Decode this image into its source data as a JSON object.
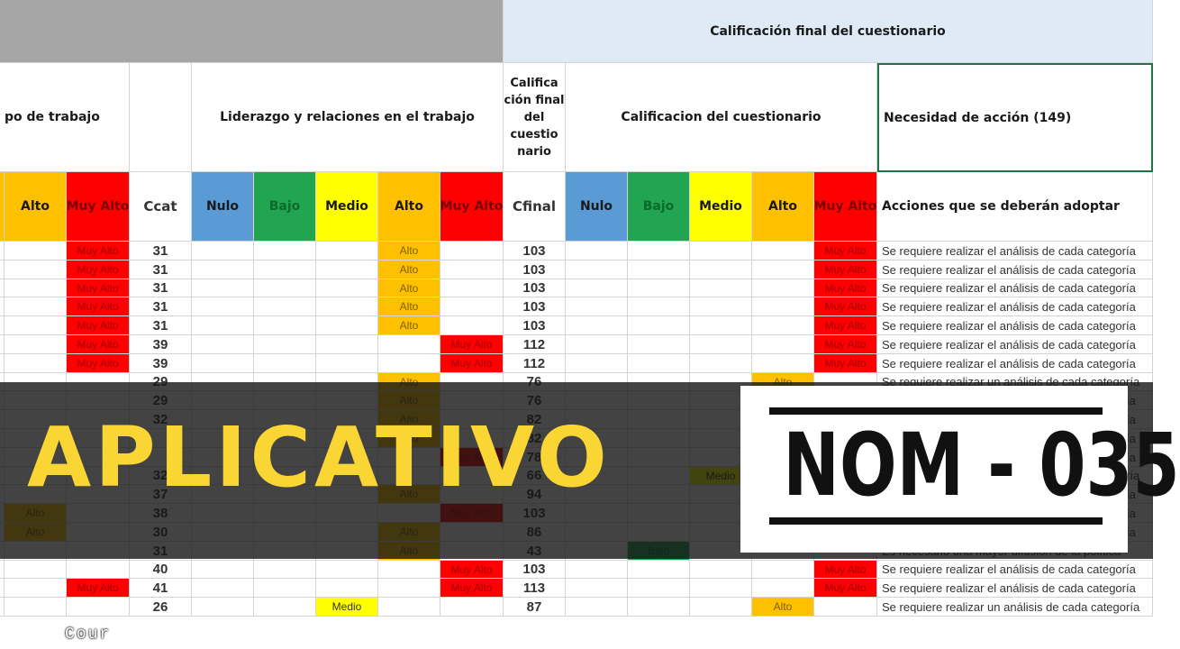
{
  "header": {
    "final_grade_title": "Calificación final del cuestionario",
    "section_team": "po de trabajo",
    "section_leadership": "Liderazgo y relaciones en el trabajo",
    "final_grade_stack": "Califica ción final del cuestio nario",
    "questionnaire_grade": "Calificacion del cuestionario",
    "action_need": "Necesidad de acción (149)"
  },
  "columns": {
    "ccat": "Ccat",
    "cfinal": "Cfinal",
    "levels": [
      "Nulo",
      "Bajo",
      "Medio",
      "Alto",
      "Muy Alto"
    ],
    "actions": "Acciones que se deberán adoptar"
  },
  "colors": {
    "Nulo": "#5b9bd5",
    "Bajo": "#21a551",
    "Medio": "#ffff00",
    "Alto": "#ffc000",
    "Muy Alto": "#ff0000",
    "header_gray": "#a6a6a6",
    "header_blue": "#deebf7",
    "title_yellow": "#f9d633"
  },
  "rows": [
    {
      "team": "Muy Alto",
      "ccat": "31",
      "lead": "Alto",
      "cfinal": "103",
      "final": "Muy Alto",
      "action": "Se requiere realizar el análisis de cada categoría"
    },
    {
      "team": "Muy Alto",
      "ccat": "31",
      "lead": "Alto",
      "cfinal": "103",
      "final": "Muy Alto",
      "action": "Se requiere realizar el análisis de cada categoría"
    },
    {
      "team": "Muy Alto",
      "ccat": "31",
      "lead": "Alto",
      "cfinal": "103",
      "final": "Muy Alto",
      "action": "Se requiere realizar el análisis de cada categoría"
    },
    {
      "team": "Muy Alto",
      "ccat": "31",
      "lead": "Alto",
      "cfinal": "103",
      "final": "Muy Alto",
      "action": "Se requiere realizar el análisis de cada categoría"
    },
    {
      "team": "Muy Alto",
      "ccat": "31",
      "lead": "Alto",
      "cfinal": "103",
      "final": "Muy Alto",
      "action": "Se requiere realizar el análisis de cada categoría"
    },
    {
      "team": "Muy Alto",
      "ccat": "39",
      "lead": "Muy Alto",
      "cfinal": "112",
      "final": "Muy Alto",
      "action": "Se requiere realizar el análisis de cada categoría"
    },
    {
      "team": "Muy Alto",
      "ccat": "39",
      "lead": "Muy Alto",
      "cfinal": "112",
      "final": "Muy Alto",
      "action": "Se requiere realizar el análisis de cada categoría"
    },
    {
      "team": "",
      "ccat": "29",
      "lead": "Alto",
      "cfinal": "76",
      "final": "Alto",
      "action": "Se requiere realizar un análisis de cada categoría"
    },
    {
      "team": "",
      "ccat": "29",
      "lead": "Alto",
      "cfinal": "76",
      "final": "",
      "action": "Se requiere realizar el análisis de cada categoría"
    },
    {
      "team": "",
      "ccat": "32",
      "lead": "Alto",
      "cfinal": "82",
      "final": "",
      "action": "Se requiere realizar el análisis de cada categoría"
    },
    {
      "team": "",
      "ccat": "",
      "lead": "Alto",
      "cfinal": "82",
      "final": "",
      "action": "Se requiere realizar el análisis de cada categoría"
    },
    {
      "team": "",
      "ccat": "",
      "lead": "Muy Alto",
      "cfinal": "78",
      "final": "",
      "action": "Se requiere realizar el análisis de cada categoría"
    },
    {
      "team": "",
      "ccat": "32",
      "lead": "",
      "cfinal": "66",
      "final": "Medio",
      "action": "Se requiere realizar un análisis de cada categoría"
    },
    {
      "team": "",
      "ccat": "37",
      "lead": "Alto",
      "cfinal": "94",
      "final": "",
      "action": "Se requiere realizar el análisis de cada categoría"
    },
    {
      "team": "Alto",
      "ccat": "38",
      "lead": "Muy Alto",
      "cfinal": "103",
      "final": "",
      "action": "Se requiere realizar el análisis de cada categoría"
    },
    {
      "team": "Alto",
      "ccat": "30",
      "lead": "Alto",
      "cfinal": "86",
      "final": "",
      "action": "Se requiere realizar el análisis de cada categoría"
    },
    {
      "team": "",
      "ccat": "31",
      "lead": "Alto",
      "cfinal": "43",
      "final": "Bajo",
      "action": "Es necesario una mayor difusión de la política"
    },
    {
      "team": "",
      "ccat": "40",
      "lead": "Muy Alto",
      "cfinal": "103",
      "final": "Muy Alto",
      "action": "Se requiere realizar el análisis de cada categoría"
    },
    {
      "team": "Muy Alto",
      "ccat": "41",
      "lead": "Muy Alto",
      "cfinal": "113",
      "final": "Muy Alto",
      "action": "Se requiere realizar el análisis de cada categoría"
    },
    {
      "team": "",
      "ccat": "26",
      "lead": "Medio",
      "cfinal": "87",
      "final": "Alto",
      "action": "Se requiere realizar un análisis de cada categoría"
    }
  ],
  "overlay": {
    "title": "APLICATIVO",
    "badge": "NOM - 035",
    "watermark": "Cour"
  }
}
